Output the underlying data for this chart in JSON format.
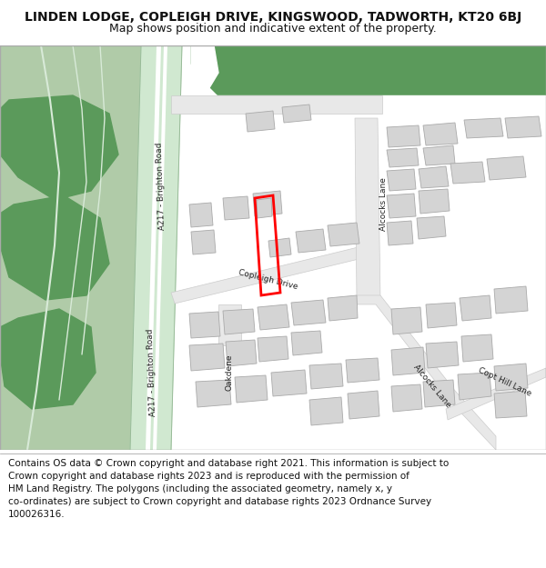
{
  "title": "LINDEN LODGE, COPLEIGH DRIVE, KINGSWOOD, TADWORTH, KT20 6BJ",
  "subtitle": "Map shows position and indicative extent of the property.",
  "footer_line1": "Contains OS data © Crown copyright and database right 2021. This information is subject to",
  "footer_line2": "Crown copyright and database rights 2023 and is reproduced with the permission of",
  "footer_line3": "HM Land Registry. The polygons (including the associated geometry, namely x, y",
  "footer_line4": "co-ordinates) are subject to Crown copyright and database rights 2023 Ordnance Survey",
  "footer_line5": "100026316.",
  "bg_color": "#ffffff",
  "green_dark": "#5b9a5b",
  "green_light": "#b0cba8",
  "building_color": "#d4d4d4",
  "building_edge": "#aaaaaa",
  "road_fill": "#e8e8e8",
  "road_edge": "#cccccc",
  "a217_fill": "#d0e8d0",
  "highlight_color": "#ff0000",
  "map_white": "#ffffff"
}
